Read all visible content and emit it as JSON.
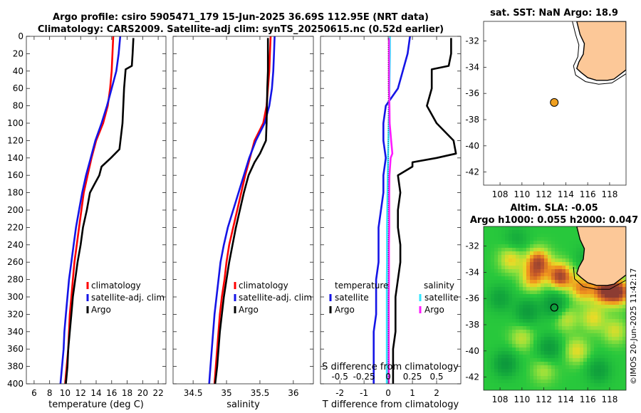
{
  "title": {
    "line1": "Argo profile: csiro 5905471_179 15-Jun-2025 36.69S 112.95E (NRT data)",
    "line2": "Climatology: CARS2009. Satellite-adj clim: synTS_20250615.nc (0.52d earlier)"
  },
  "watermark": "©IMOS 20-Jun-2025 11:42:17",
  "colors": {
    "climatology": "#ff0000",
    "satellite": "#1414e6",
    "argo": "#000000",
    "satellite_s": "#33e5ff",
    "argo_s": "#ff1aff",
    "land": "#fcc898",
    "marker": "#f0a020"
  },
  "chart_data": [
    {
      "type": "line",
      "name": "temperature-profile",
      "xlabel": "temperature (deg C)",
      "ylabel": "",
      "xlim": [
        5,
        23
      ],
      "ylim": [
        400,
        0
      ],
      "xticks": [
        6,
        8,
        10,
        12,
        14,
        16,
        18,
        20,
        22
      ],
      "xtick_labels": [
        "6",
        "8",
        "10",
        "12",
        "14",
        "16",
        "18",
        "20",
        "22"
      ],
      "yticks": [
        0,
        20,
        40,
        60,
        80,
        100,
        120,
        140,
        160,
        180,
        200,
        220,
        240,
        260,
        280,
        300,
        320,
        340,
        360,
        380,
        400
      ],
      "ytick_labels": [
        "0",
        "20",
        "40",
        "60",
        "80",
        "100",
        "120",
        "140",
        "160",
        "180",
        "200",
        "220",
        "240",
        "260",
        "280",
        "300",
        "320",
        "340",
        "360",
        "380",
        "400"
      ],
      "legend": {
        "position": "middle-right",
        "entries": [
          "climatology",
          "satellite-adj. clim",
          "Argo"
        ]
      },
      "series": [
        {
          "name": "climatology",
          "color": "#ff0000",
          "depth": [
            0,
            20,
            40,
            60,
            80,
            100,
            120,
            140,
            160,
            180,
            200,
            220,
            240,
            260,
            280,
            300,
            320,
            340,
            360,
            380,
            400
          ],
          "values": [
            16.2,
            16.1,
            16.0,
            15.8,
            15.5,
            14.9,
            14.0,
            13.4,
            12.9,
            12.4,
            12.1,
            11.8,
            11.5,
            11.2,
            11.0,
            10.8,
            10.6,
            10.5,
            10.4,
            10.2,
            10.0
          ]
        },
        {
          "name": "satellite-adj. clim",
          "color": "#1414e6",
          "depth": [
            0,
            20,
            40,
            60,
            80,
            100,
            120,
            140,
            160,
            180,
            200,
            220,
            240,
            260,
            280,
            300,
            320,
            340,
            360,
            380,
            400
          ],
          "values": [
            17.1,
            16.9,
            16.6,
            16.0,
            15.4,
            14.7,
            13.9,
            13.3,
            12.7,
            12.2,
            11.8,
            11.4,
            11.1,
            10.8,
            10.5,
            10.3,
            10.1,
            9.9,
            9.8,
            9.6,
            9.4
          ]
        },
        {
          "name": "Argo",
          "color": "#000000",
          "depth": [
            2,
            20,
            34,
            38,
            60,
            100,
            130,
            140,
            150,
            160,
            170,
            180,
            200,
            220,
            240,
            260,
            280,
            300,
            320,
            340,
            360,
            380,
            400
          ],
          "values": [
            18.8,
            18.7,
            18.6,
            17.8,
            17.6,
            17.4,
            17.0,
            15.9,
            14.7,
            14.4,
            13.8,
            13.2,
            12.8,
            12.3,
            12.0,
            11.6,
            11.3,
            11.0,
            10.8,
            10.6,
            10.4,
            10.3,
            10.1
          ]
        }
      ]
    },
    {
      "type": "line",
      "name": "salinity-profile",
      "xlabel": "salinity",
      "xlim": [
        34.2,
        36.3
      ],
      "ylim": [
        400,
        0
      ],
      "xticks": [
        34.5,
        35,
        35.5,
        36
      ],
      "xtick_labels": [
        "34.5",
        "35",
        "35.5",
        "36"
      ],
      "legend": {
        "position": "middle-right",
        "entries": [
          "climatology",
          "satellite-adj. clim",
          "Argo"
        ]
      },
      "series": [
        {
          "name": "climatology",
          "color": "#ff0000",
          "depth": [
            0,
            20,
            40,
            60,
            80,
            100,
            120,
            140,
            160,
            180,
            200,
            220,
            240,
            260,
            280,
            300,
            320,
            340,
            360,
            380,
            400
          ],
          "values": [
            35.66,
            35.65,
            35.64,
            35.62,
            35.6,
            35.55,
            35.42,
            35.35,
            35.28,
            35.22,
            35.16,
            35.1,
            35.04,
            35.0,
            34.97,
            34.93,
            34.9,
            34.88,
            34.86,
            34.84,
            34.82
          ]
        },
        {
          "name": "satellite-adj. clim",
          "color": "#1414e6",
          "depth": [
            0,
            20,
            40,
            60,
            80,
            100,
            120,
            140,
            160,
            180,
            200,
            220,
            240,
            260,
            280,
            300,
            320,
            340,
            360,
            380,
            400
          ],
          "values": [
            35.72,
            35.71,
            35.7,
            35.68,
            35.64,
            35.57,
            35.44,
            35.34,
            35.26,
            35.18,
            35.1,
            35.02,
            34.96,
            34.91,
            34.88,
            34.85,
            34.82,
            34.8,
            34.78,
            34.76,
            34.74
          ]
        },
        {
          "name": "Argo",
          "color": "#000000",
          "depth": [
            2,
            20,
            40,
            60,
            100,
            120,
            135,
            145,
            160,
            180,
            200,
            220,
            240,
            260,
            280,
            300,
            320,
            340,
            360,
            380,
            400
          ],
          "values": [
            35.62,
            35.62,
            35.62,
            35.61,
            35.6,
            35.59,
            35.5,
            35.42,
            35.33,
            35.26,
            35.2,
            35.14,
            35.09,
            35.04,
            35.0,
            34.96,
            34.93,
            34.9,
            34.88,
            34.86,
            34.83
          ]
        }
      ]
    },
    {
      "type": "line",
      "name": "difference-profile",
      "xlabel": "T difference from climatology",
      "xlabel_top": "S difference from climatology",
      "xlim": [
        -2.8,
        3.0
      ],
      "ylim": [
        400,
        0
      ],
      "xticks": [
        -2,
        -1,
        0,
        1,
        2
      ],
      "xtick_labels": [
        "-2",
        "-1",
        "0",
        "1",
        "2"
      ],
      "secondary_xticks": [
        -0.5,
        -0.25,
        0,
        0.25,
        0.5
      ],
      "secondary_xtick_labels": [
        "-0.5",
        "-0.25",
        "0",
        "0.25",
        "0.5"
      ],
      "legend": {
        "position": "middle",
        "entries_t": [
          "temperature",
          "satellite",
          "Argo"
        ],
        "entries_s": [
          "salinity",
          "satellite",
          "Argo"
        ]
      },
      "series": [
        {
          "name": "temperature satellite",
          "color": "#1414e6",
          "depth": [
            0,
            20,
            40,
            60,
            80,
            100,
            120,
            140,
            160,
            180,
            200,
            220,
            240,
            260,
            280,
            300,
            320,
            340,
            360,
            380,
            400
          ],
          "values": [
            0.9,
            0.8,
            0.6,
            0.4,
            -0.1,
            -0.2,
            -0.2,
            -0.1,
            -0.2,
            -0.2,
            -0.3,
            -0.4,
            -0.4,
            -0.4,
            -0.5,
            -0.5,
            -0.5,
            -0.6,
            -0.6,
            -0.6,
            -0.6
          ]
        },
        {
          "name": "temperature Argo",
          "color": "#000000",
          "depth": [
            2,
            20,
            34,
            38,
            60,
            80,
            100,
            120,
            135,
            140,
            145,
            150,
            160,
            180,
            200,
            220,
            240,
            260,
            280,
            300,
            320,
            340,
            360,
            380,
            400
          ],
          "values": [
            2.6,
            2.6,
            2.5,
            1.8,
            1.8,
            1.6,
            2.0,
            2.7,
            2.8,
            2.0,
            1.0,
            1.0,
            0.4,
            0.5,
            0.4,
            0.4,
            0.5,
            0.5,
            0.4,
            0.3,
            0.3,
            0.3,
            0.2,
            0.2,
            0.2
          ]
        },
        {
          "name": "salinity satellite",
          "color": "#33e5ff",
          "depth": [
            0,
            20,
            40,
            60,
            80,
            100,
            120,
            140,
            160,
            180,
            200,
            220,
            240,
            260,
            280,
            300,
            320,
            340,
            360,
            380,
            400
          ],
          "values": [
            0.07,
            0.07,
            0.06,
            0.05,
            0.04,
            0.02,
            0.01,
            -0.01,
            -0.02,
            -0.03,
            -0.04,
            -0.05,
            -0.05,
            -0.05,
            -0.06,
            -0.06,
            -0.06,
            -0.06,
            -0.06,
            -0.06,
            -0.06
          ]
        },
        {
          "name": "salinity Argo",
          "color": "#ff1aff",
          "depth": [
            2,
            20,
            40,
            60,
            80,
            100,
            120,
            135,
            140,
            160,
            180,
            200,
            220,
            240,
            260,
            280,
            300,
            320,
            340,
            360,
            380,
            400
          ],
          "values": [
            0.03,
            0.03,
            0.03,
            0.03,
            0.05,
            0.06,
            0.12,
            0.17,
            0.1,
            0.05,
            0.04,
            0.04,
            0.04,
            0.03,
            0.03,
            0.03,
            0.02,
            0.02,
            0.02,
            0.02,
            0.02,
            0.02
          ]
        }
      ]
    },
    {
      "type": "map",
      "name": "sst-map",
      "title": "sat. SST: NaN Argo: 18.9",
      "xlim": [
        106.5,
        119.5
      ],
      "ylim": [
        -43,
        -30.5
      ],
      "xticks": [
        108,
        110,
        112,
        114,
        116,
        118
      ],
      "xtick_labels": [
        "108",
        "110",
        "112",
        "114",
        "116",
        "118"
      ],
      "yticks": [
        -32,
        -34,
        -36,
        -38,
        -40,
        -42
      ],
      "ytick_labels": [
        "-32",
        "-34",
        "-36",
        "-38",
        "-40",
        "-42"
      ],
      "float_position": {
        "lon": 112.95,
        "lat": -36.69
      }
    },
    {
      "type": "heatmap",
      "name": "sla-map",
      "title_line1": "Altim. SLA: -0.05",
      "title_line2": "Argo h1000: 0.055 h2000: 0.047",
      "xlim": [
        106.5,
        119.5
      ],
      "ylim": [
        -43,
        -30.5
      ],
      "xticks": [
        108,
        110,
        112,
        114,
        116,
        118
      ],
      "xtick_labels": [
        "108",
        "110",
        "112",
        "114",
        "116",
        "118"
      ],
      "yticks": [
        -32,
        -34,
        -36,
        -38,
        -40,
        -42
      ],
      "ytick_labels": [
        "-32",
        "-34",
        "-36",
        "-38",
        "-40",
        "-42"
      ],
      "float_position": {
        "lon": 112.95,
        "lat": -36.69
      },
      "blobs": [
        {
          "lon": 111.5,
          "lat": -33.2,
          "v": 0.9
        },
        {
          "lon": 113.5,
          "lat": -34.3,
          "v": 1.0
        },
        {
          "lon": 111.0,
          "lat": -34.5,
          "v": 0.6
        },
        {
          "lon": 115.5,
          "lat": -35.2,
          "v": 0.7
        },
        {
          "lon": 117.5,
          "lat": -35.4,
          "v": 0.9
        },
        {
          "lon": 118.8,
          "lat": -35.5,
          "v": 1.0
        },
        {
          "lon": 109.0,
          "lat": -33.0,
          "v": 0.5
        },
        {
          "lon": 114.0,
          "lat": -37.5,
          "v": 0.4
        },
        {
          "lon": 116.5,
          "lat": -37.5,
          "v": 0.45
        },
        {
          "lon": 110.0,
          "lat": -39.0,
          "v": 0.35
        },
        {
          "lon": 115.0,
          "lat": -40.0,
          "v": 0.45
        },
        {
          "lon": 118.5,
          "lat": -38.5,
          "v": 0.4
        },
        {
          "lon": 112.0,
          "lat": -41.5,
          "v": 0.3
        },
        {
          "lon": 108.0,
          "lat": -36.0,
          "v": -0.4
        },
        {
          "lon": 113.0,
          "lat": -36.5,
          "v": -0.6
        },
        {
          "lon": 110.5,
          "lat": -37.0,
          "v": -0.5
        },
        {
          "lon": 112.5,
          "lat": -39.8,
          "v": -0.5
        },
        {
          "lon": 108.5,
          "lat": -41.0,
          "v": -0.55
        },
        {
          "lon": 117.0,
          "lat": -41.5,
          "v": -0.45
        },
        {
          "lon": 116.0,
          "lat": -33.0,
          "v": -0.3
        },
        {
          "lon": 109.5,
          "lat": -31.5,
          "v": -0.3
        }
      ]
    }
  ]
}
